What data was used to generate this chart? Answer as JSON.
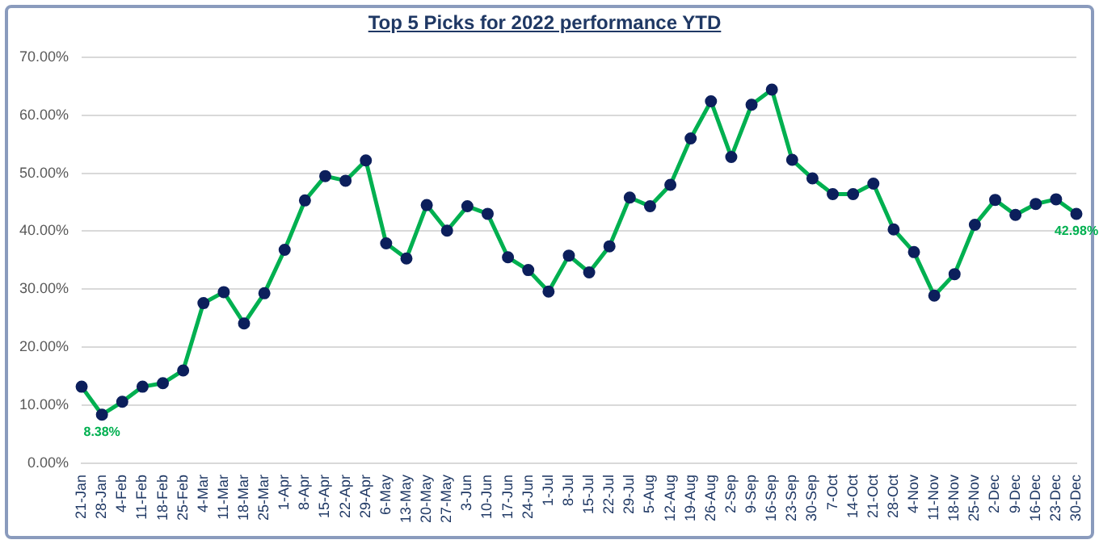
{
  "chart_data": {
    "type": "line",
    "title": "Top 5 Picks for 2022 performance YTD",
    "categories": [
      "21-Jan",
      "28-Jan",
      "4-Feb",
      "11-Feb",
      "18-Feb",
      "25-Feb",
      "4-Mar",
      "11-Mar",
      "18-Mar",
      "25-Mar",
      "1-Apr",
      "8-Apr",
      "15-Apr",
      "22-Apr",
      "29-Apr",
      "6-May",
      "13-May",
      "20-May",
      "27-May",
      "3-Jun",
      "10-Jun",
      "17-Jun",
      "24-Jun",
      "1-Jul",
      "8-Jul",
      "15-Jul",
      "22-Jul",
      "29-Jul",
      "5-Aug",
      "12-Aug",
      "19-Aug",
      "26-Aug",
      "2-Sep",
      "9-Sep",
      "16-Sep",
      "23-Sep",
      "30-Sep",
      "7-Oct",
      "14-Oct",
      "21-Oct",
      "28-Oct",
      "4-Nov",
      "11-Nov",
      "18-Nov",
      "25-Nov",
      "2-Dec",
      "9-Dec",
      "16-Dec",
      "23-Dec",
      "30-Dec"
    ],
    "series": [
      {
        "color": "#00b050",
        "values": [
          13.2,
          8.38,
          10.6,
          13.2,
          13.8,
          16.0,
          27.6,
          29.5,
          24.1,
          29.3,
          36.8,
          45.3,
          49.5,
          48.7,
          52.2,
          37.9,
          35.3,
          44.5,
          40.1,
          44.3,
          43.0,
          35.5,
          33.3,
          29.6,
          35.8,
          32.9,
          37.4,
          45.8,
          44.3,
          48.0,
          56.0,
          62.4,
          52.8,
          61.8,
          64.4,
          52.3,
          49.1,
          46.4,
          46.4,
          48.2,
          40.3,
          36.4,
          28.9,
          32.6,
          41.1,
          45.4,
          42.8,
          44.7,
          45.5,
          42.98
        ],
        "value_labels": [
          null,
          "8.38%",
          null,
          null,
          null,
          null,
          null,
          null,
          null,
          null,
          null,
          null,
          null,
          null,
          null,
          null,
          null,
          null,
          null,
          null,
          null,
          null,
          null,
          null,
          null,
          null,
          null,
          null,
          null,
          null,
          null,
          null,
          null,
          null,
          null,
          null,
          null,
          null,
          null,
          null,
          null,
          null,
          null,
          null,
          null,
          null,
          null,
          null,
          null,
          "42.98%"
        ]
      }
    ],
    "ylim": [
      0,
      70
    ],
    "yticks": [
      {
        "value": 0,
        "label": "0.00%"
      },
      {
        "value": 10,
        "label": "10.00%"
      },
      {
        "value": 20,
        "label": "20.00%"
      },
      {
        "value": 30,
        "label": "30.00%"
      },
      {
        "value": 40,
        "label": "40.00%"
      },
      {
        "value": 50,
        "label": "50.00%"
      },
      {
        "value": 60,
        "label": "60.00%"
      },
      {
        "value": 70,
        "label": "70.00%"
      }
    ],
    "grid": "y",
    "legend": false,
    "marker": "circle",
    "line_style": "solid"
  }
}
